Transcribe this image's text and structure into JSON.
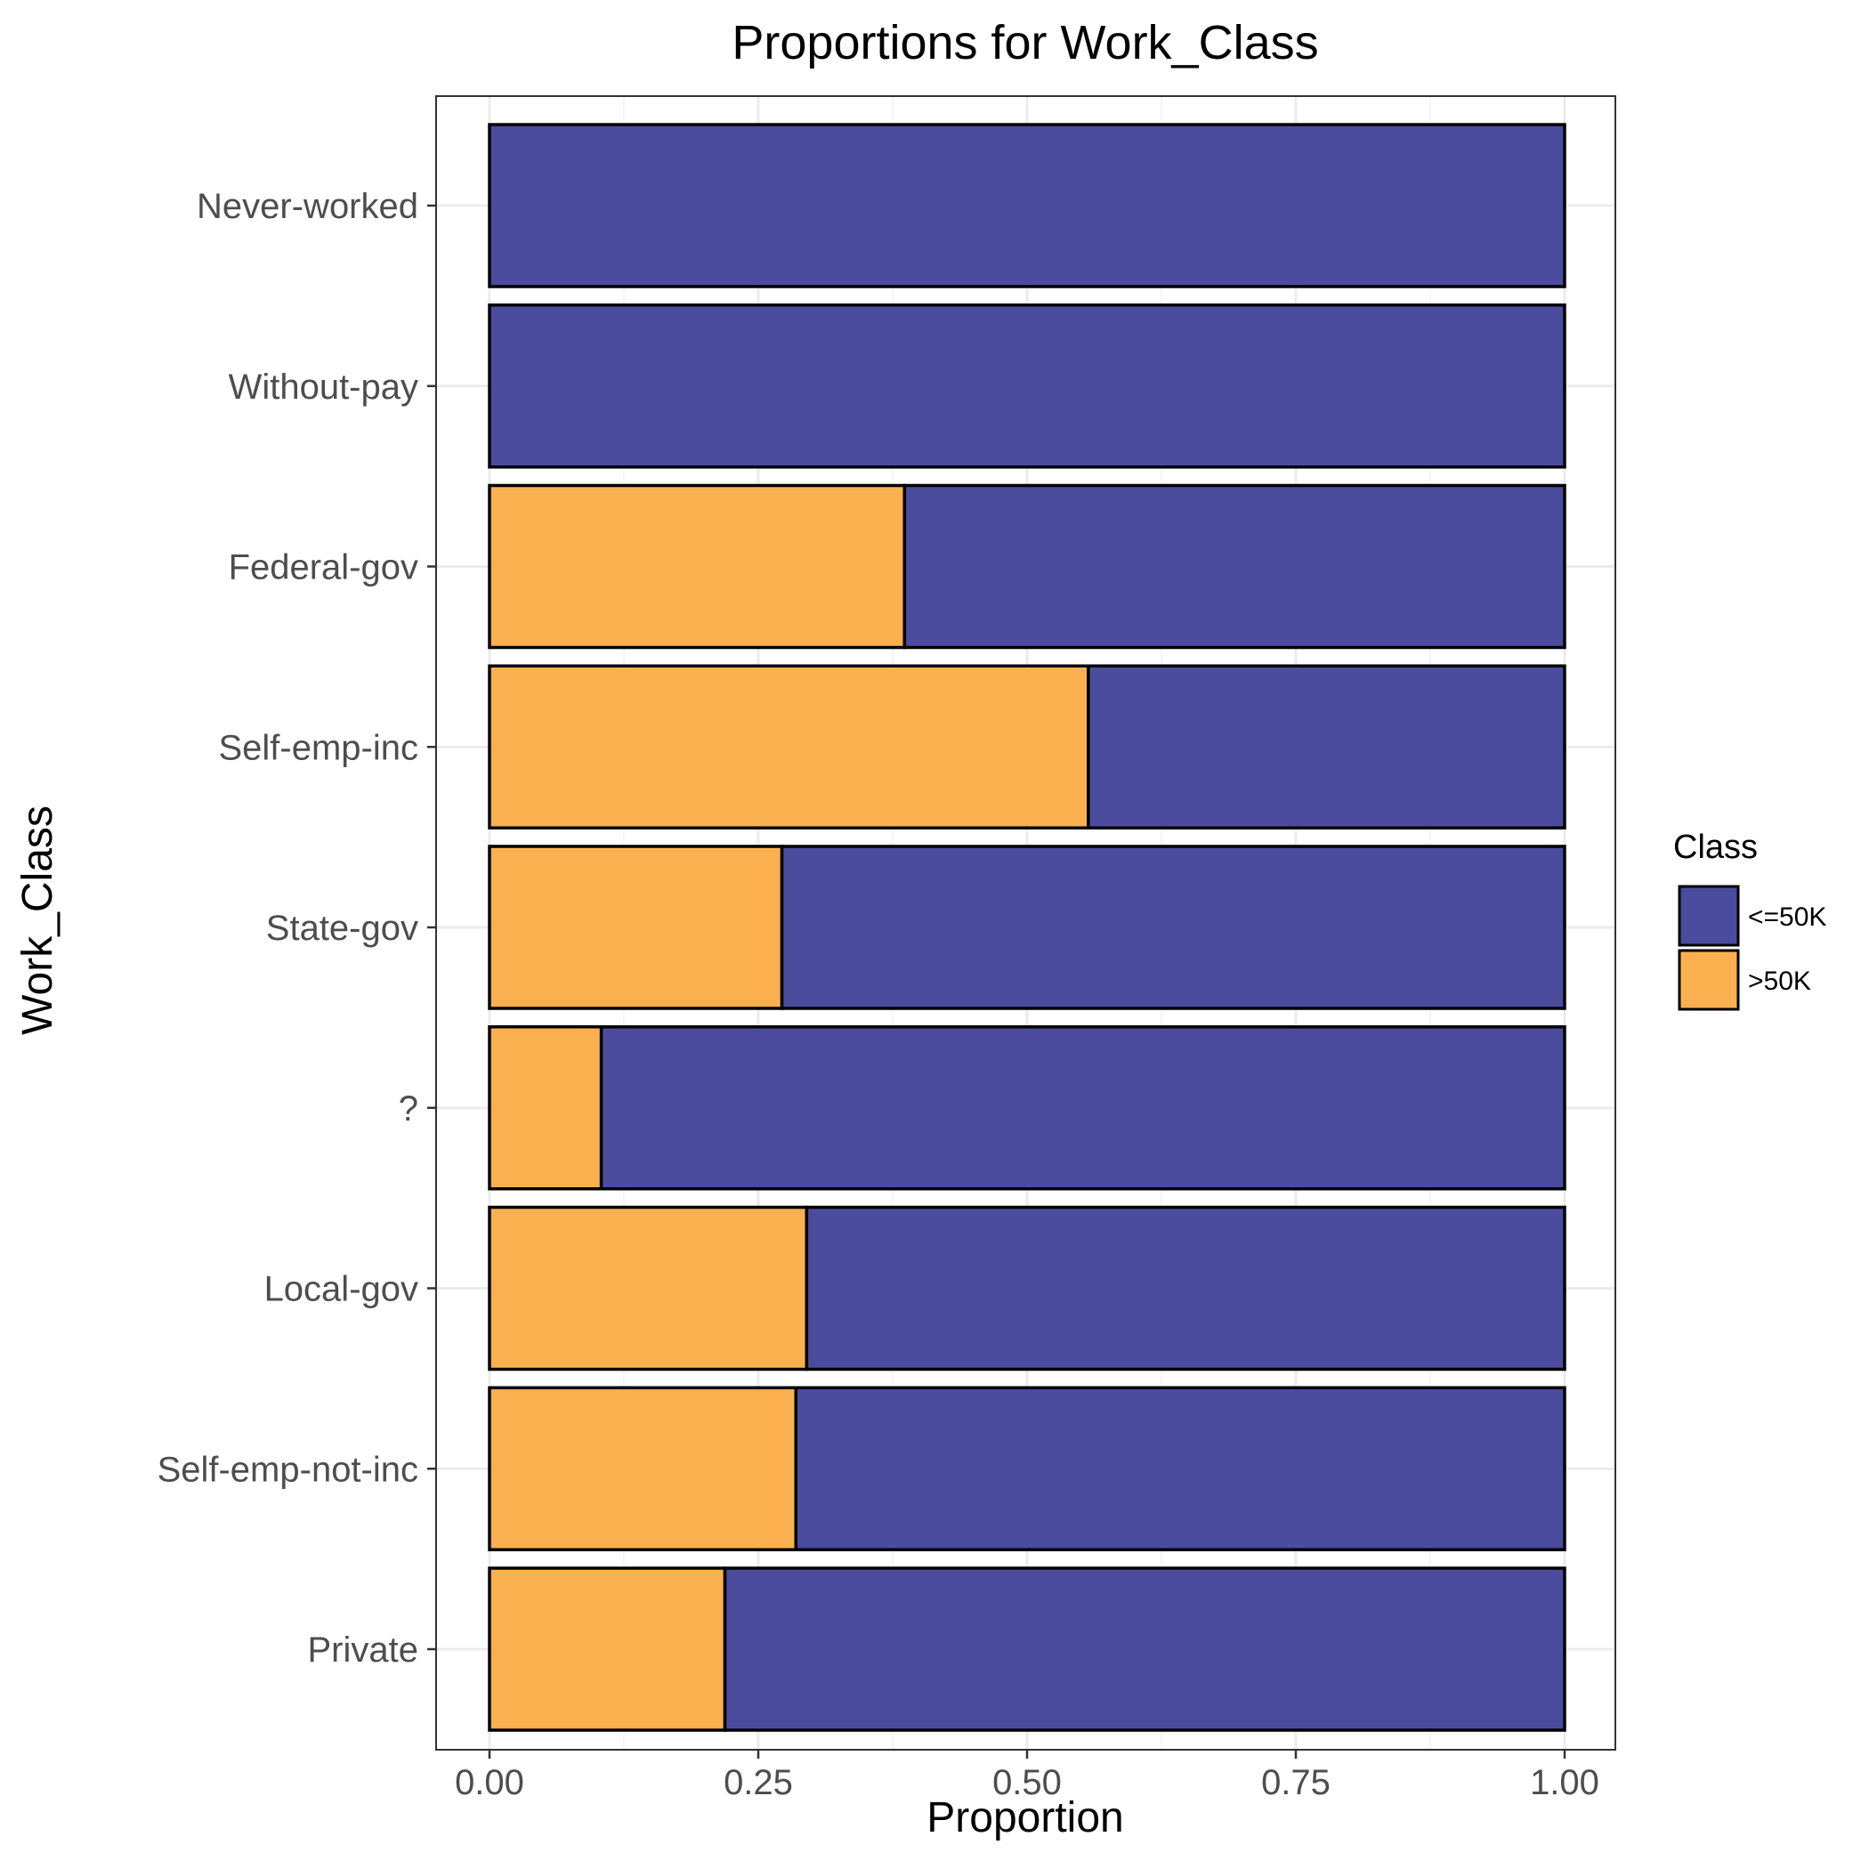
{
  "chart_data": {
    "type": "bar",
    "orientation": "horizontal",
    "stacked": true,
    "title": "Proportions for Work_Class",
    "xlabel": "Proportion",
    "ylabel": "Work_Class",
    "xlim": [
      0,
      1
    ],
    "x_ticks": [
      "0.00",
      "0.25",
      "0.50",
      "0.75",
      "1.00"
    ],
    "categories": [
      "Never-worked",
      "Without-pay",
      "Federal-gov",
      "Self-emp-inc",
      "State-gov",
      "?",
      "Local-gov",
      "Self-emp-not-inc",
      "Private"
    ],
    "series": [
      {
        "name": ">50K",
        "color": "#fbb04f",
        "values": [
          0.0,
          0.0,
          0.386,
          0.557,
          0.272,
          0.104,
          0.295,
          0.285,
          0.219
        ]
      },
      {
        "name": "<=50K",
        "color": "#4b4c9e",
        "values": [
          1.0,
          1.0,
          0.614,
          0.443,
          0.728,
          0.896,
          0.705,
          0.715,
          0.781
        ]
      }
    ],
    "legend": {
      "title": "Class",
      "position": "right",
      "items": [
        {
          "label": "<=50K",
          "color": "#4b4c9e"
        },
        {
          "label": ">50K",
          "color": "#fbb04f"
        }
      ]
    },
    "grid": true,
    "theme": "bw"
  }
}
